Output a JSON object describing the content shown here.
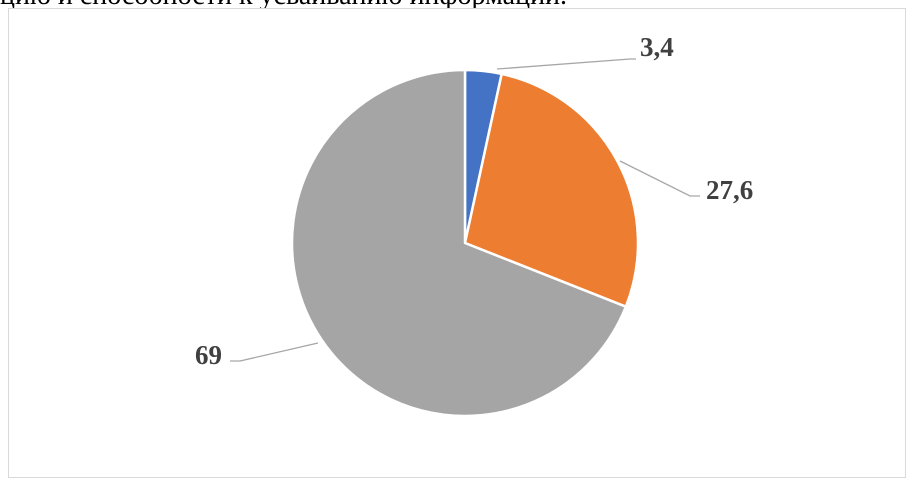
{
  "header_text": "цию и способности к усваиванию информации.",
  "chart_data": {
    "type": "pie",
    "values": [
      3.4,
      27.6,
      69
    ],
    "labels": [
      "3,4",
      "27,6",
      "69"
    ],
    "colors": [
      "#4472c4",
      "#ed7d31",
      "#a5a5a5"
    ],
    "start_angle_deg": 0,
    "direction": "clockwise",
    "legend": "none"
  }
}
